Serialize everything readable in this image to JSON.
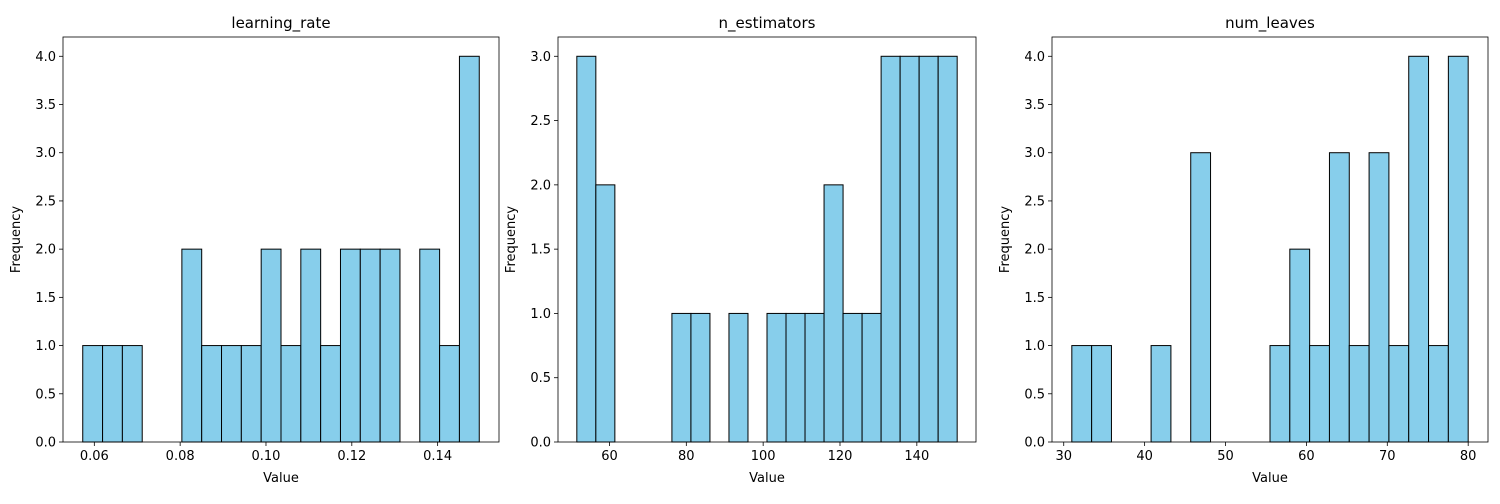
{
  "chart_data": [
    {
      "type": "bar",
      "title": "learning_rate",
      "xlabel": "Value",
      "ylabel": "Frequency",
      "bin_range": [
        0.0573,
        0.1497
      ],
      "bin_count": 20,
      "counts": [
        1,
        1,
        1,
        0,
        0,
        2,
        1,
        1,
        1,
        2,
        1,
        2,
        1,
        2,
        2,
        2,
        0,
        2,
        1,
        4
      ],
      "xlim": [
        0.0527,
        0.1543
      ],
      "ylim": [
        0,
        4.2
      ],
      "xticks": [
        0.06,
        0.08,
        0.1,
        0.12,
        0.14
      ],
      "xtick_labels": [
        "0.06",
        "0.08",
        "0.10",
        "0.12",
        "0.14"
      ],
      "yticks": [
        0,
        0.5,
        1.0,
        1.5,
        2.0,
        2.5,
        3.0,
        3.5,
        4.0
      ],
      "ytick_labels": [
        "0.0",
        "0.5",
        "1.0",
        "1.5",
        "2.0",
        "2.5",
        "3.0",
        "3.5",
        "4.0"
      ],
      "bar_color": "#87ceeb",
      "edge_color": "#000000",
      "grid": false
    },
    {
      "type": "bar",
      "title": "n_estimators",
      "xlabel": "Value",
      "ylabel": "Frequency",
      "bin_range": [
        51.5,
        150.5
      ],
      "bin_count": 20,
      "counts": [
        3,
        2,
        0,
        0,
        0,
        1,
        1,
        0,
        1,
        0,
        1,
        1,
        1,
        2,
        1,
        1,
        3,
        3,
        3,
        3
      ],
      "xlim": [
        46.6,
        155.4
      ],
      "ylim": [
        0,
        3.15
      ],
      "xticks": [
        60,
        80,
        100,
        120,
        140
      ],
      "xtick_labels": [
        "60",
        "80",
        "100",
        "120",
        "140"
      ],
      "yticks": [
        0,
        0.5,
        1.0,
        1.5,
        2.0,
        2.5,
        3.0
      ],
      "ytick_labels": [
        "0.0",
        "0.5",
        "1.0",
        "1.5",
        "2.0",
        "2.5",
        "3.0"
      ],
      "bar_color": "#87ceeb",
      "edge_color": "#000000",
      "grid": false
    },
    {
      "type": "bar",
      "title": "num_leaves",
      "xlabel": "Value",
      "ylabel": "Frequency",
      "bin_range": [
        31.0,
        80.0
      ],
      "bin_count": 20,
      "counts": [
        1,
        1,
        0,
        0,
        1,
        0,
        3,
        0,
        0,
        0,
        1,
        2,
        1,
        3,
        1,
        3,
        1,
        4,
        1,
        4
      ],
      "xlim": [
        28.55,
        82.45
      ],
      "ylim": [
        0,
        4.2
      ],
      "xticks": [
        30,
        40,
        50,
        60,
        70,
        80
      ],
      "xtick_labels": [
        "30",
        "40",
        "50",
        "60",
        "70",
        "80"
      ],
      "yticks": [
        0,
        0.5,
        1.0,
        1.5,
        2.0,
        2.5,
        3.0,
        3.5,
        4.0
      ],
      "ytick_labels": [
        "0.0",
        "0.5",
        "1.0",
        "1.5",
        "2.0",
        "2.5",
        "3.0",
        "3.5",
        "4.0"
      ],
      "bar_color": "#87ceeb",
      "edge_color": "#000000",
      "grid": false
    }
  ]
}
